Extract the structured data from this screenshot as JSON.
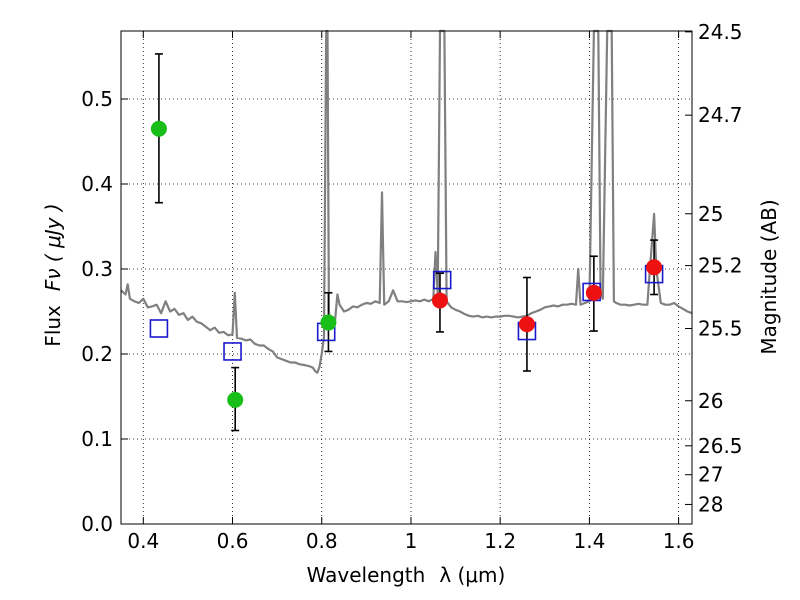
{
  "chart_data": {
    "type": "scatter",
    "xlabel": "Wavelength",
    "xlabel_symbol": "λ (μm)",
    "ylabel": "Flux",
    "ylabel_symbol": "Fν  ( μJy )",
    "y2label": "Magnitude (AB)",
    "xlim": [
      0.35,
      1.63
    ],
    "ylim": [
      0.0,
      0.58
    ],
    "grid": true,
    "x_ticks": [
      0.4,
      0.6,
      0.8,
      1.0,
      1.2,
      1.4,
      1.6
    ],
    "x_tick_labels": [
      "0.4",
      "0.6",
      "0.8",
      "1",
      "1.2",
      "1.4",
      "1.6"
    ],
    "y_ticks": [
      0.0,
      0.1,
      0.2,
      0.3,
      0.4,
      0.5
    ],
    "y_tick_labels": [
      "0.0",
      "0.1",
      "0.2",
      "0.3",
      "0.4",
      "0.5"
    ],
    "y2_ticks": [
      {
        "label": "24.5",
        "flux": 0.579
      },
      {
        "label": "24.7",
        "flux": 0.481
      },
      {
        "label": "25",
        "flux": 0.365
      },
      {
        "label": "25.2",
        "flux": 0.304
      },
      {
        "label": "25.5",
        "flux": 0.23
      },
      {
        "label": "26",
        "flux": 0.145
      },
      {
        "label": "26.5",
        "flux": 0.092
      },
      {
        "label": "27",
        "flux": 0.058
      },
      {
        "label": "28",
        "flux": 0.023
      }
    ],
    "colors": {
      "model": "#808080",
      "green": "#18bf18",
      "red": "#ee1111",
      "square": "#1a1acd",
      "errorbar": "#000000"
    },
    "series": [
      {
        "role": "model_spectrum",
        "points": [
          [
            0.35,
            0.275
          ],
          [
            0.36,
            0.27
          ],
          [
            0.365,
            0.282
          ],
          [
            0.37,
            0.265
          ],
          [
            0.38,
            0.262
          ],
          [
            0.39,
            0.26
          ],
          [
            0.4,
            0.265
          ],
          [
            0.41,
            0.255
          ],
          [
            0.42,
            0.256
          ],
          [
            0.43,
            0.258
          ],
          [
            0.44,
            0.248
          ],
          [
            0.45,
            0.262
          ],
          [
            0.46,
            0.25
          ],
          [
            0.47,
            0.253
          ],
          [
            0.48,
            0.246
          ],
          [
            0.49,
            0.248
          ],
          [
            0.5,
            0.24
          ],
          [
            0.51,
            0.244
          ],
          [
            0.52,
            0.238
          ],
          [
            0.53,
            0.236
          ],
          [
            0.54,
            0.232
          ],
          [
            0.55,
            0.228
          ],
          [
            0.56,
            0.231
          ],
          [
            0.57,
            0.225
          ],
          [
            0.58,
            0.226
          ],
          [
            0.59,
            0.222
          ],
          [
            0.6,
            0.223
          ],
          [
            0.605,
            0.272
          ],
          [
            0.61,
            0.219
          ],
          [
            0.62,
            0.218
          ],
          [
            0.63,
            0.216
          ],
          [
            0.64,
            0.217
          ],
          [
            0.65,
            0.212
          ],
          [
            0.66,
            0.21
          ],
          [
            0.67,
            0.21
          ],
          [
            0.68,
            0.206
          ],
          [
            0.69,
            0.203
          ],
          [
            0.7,
            0.196
          ],
          [
            0.71,
            0.194
          ],
          [
            0.72,
            0.192
          ],
          [
            0.73,
            0.19
          ],
          [
            0.74,
            0.19
          ],
          [
            0.75,
            0.188
          ],
          [
            0.76,
            0.187
          ],
          [
            0.77,
            0.186
          ],
          [
            0.78,
            0.184
          ],
          [
            0.785,
            0.18
          ],
          [
            0.79,
            0.178
          ],
          [
            0.795,
            0.185
          ],
          [
            0.8,
            0.2
          ],
          [
            0.805,
            0.22
          ],
          [
            0.81,
            0.58
          ],
          [
            0.813,
            0.58
          ],
          [
            0.816,
            0.25
          ],
          [
            0.82,
            0.235
          ],
          [
            0.83,
            0.24
          ],
          [
            0.835,
            0.27
          ],
          [
            0.84,
            0.258
          ],
          [
            0.85,
            0.25
          ],
          [
            0.86,
            0.252
          ],
          [
            0.87,
            0.256
          ],
          [
            0.88,
            0.255
          ],
          [
            0.89,
            0.258
          ],
          [
            0.9,
            0.26
          ],
          [
            0.91,
            0.259
          ],
          [
            0.92,
            0.262
          ],
          [
            0.93,
            0.26
          ],
          [
            0.935,
            0.39
          ],
          [
            0.94,
            0.258
          ],
          [
            0.95,
            0.262
          ],
          [
            0.96,
            0.275
          ],
          [
            0.97,
            0.262
          ],
          [
            0.98,
            0.262
          ],
          [
            0.99,
            0.261
          ],
          [
            1.0,
            0.262
          ],
          [
            1.01,
            0.263
          ],
          [
            1.02,
            0.262
          ],
          [
            1.03,
            0.264
          ],
          [
            1.04,
            0.262
          ],
          [
            1.05,
            0.265
          ],
          [
            1.055,
            0.32
          ],
          [
            1.06,
            0.27
          ],
          [
            1.065,
            0.58
          ],
          [
            1.075,
            0.58
          ],
          [
            1.08,
            0.262
          ],
          [
            1.09,
            0.255
          ],
          [
            1.1,
            0.252
          ],
          [
            1.11,
            0.25
          ],
          [
            1.12,
            0.247
          ],
          [
            1.13,
            0.245
          ],
          [
            1.14,
            0.244
          ],
          [
            1.15,
            0.245
          ],
          [
            1.16,
            0.243
          ],
          [
            1.17,
            0.244
          ],
          [
            1.18,
            0.243
          ],
          [
            1.19,
            0.244
          ],
          [
            1.2,
            0.244
          ],
          [
            1.21,
            0.245
          ],
          [
            1.22,
            0.245
          ],
          [
            1.23,
            0.244
          ],
          [
            1.24,
            0.243
          ],
          [
            1.25,
            0.244
          ],
          [
            1.26,
            0.245
          ],
          [
            1.27,
            0.248
          ],
          [
            1.28,
            0.25
          ],
          [
            1.29,
            0.252
          ],
          [
            1.3,
            0.255
          ],
          [
            1.31,
            0.256
          ],
          [
            1.32,
            0.257
          ],
          [
            1.33,
            0.256
          ],
          [
            1.34,
            0.258
          ],
          [
            1.35,
            0.258
          ],
          [
            1.36,
            0.259
          ],
          [
            1.37,
            0.258
          ],
          [
            1.375,
            0.3
          ],
          [
            1.38,
            0.258
          ],
          [
            1.39,
            0.26
          ],
          [
            1.4,
            0.262
          ],
          [
            1.41,
            0.58
          ],
          [
            1.42,
            0.58
          ],
          [
            1.425,
            0.27
          ],
          [
            1.43,
            0.265
          ],
          [
            1.44,
            0.58
          ],
          [
            1.45,
            0.58
          ],
          [
            1.455,
            0.262
          ],
          [
            1.46,
            0.26
          ],
          [
            1.47,
            0.258
          ],
          [
            1.48,
            0.258
          ],
          [
            1.49,
            0.257
          ],
          [
            1.5,
            0.258
          ],
          [
            1.51,
            0.259
          ],
          [
            1.52,
            0.258
          ],
          [
            1.53,
            0.258
          ],
          [
            1.535,
            0.295
          ],
          [
            1.54,
            0.33
          ],
          [
            1.545,
            0.365
          ],
          [
            1.55,
            0.3
          ],
          [
            1.56,
            0.26
          ],
          [
            1.57,
            0.258
          ],
          [
            1.58,
            0.258
          ],
          [
            1.59,
            0.26
          ],
          [
            1.6,
            0.256
          ],
          [
            1.61,
            0.253
          ],
          [
            1.62,
            0.25
          ],
          [
            1.63,
            0.248
          ]
        ]
      },
      {
        "role": "model_photometry_squares",
        "points": [
          [
            0.435,
            0.23
          ],
          [
            0.6,
            0.203
          ],
          [
            0.81,
            0.226
          ],
          [
            1.07,
            0.287
          ],
          [
            1.26,
            0.227
          ],
          [
            1.405,
            0.273
          ],
          [
            1.545,
            0.294
          ]
        ]
      },
      {
        "role": "observed_green",
        "points": [
          {
            "x": 0.435,
            "y": 0.465,
            "err_low": 0.378,
            "err_high": 0.553
          },
          {
            "x": 0.606,
            "y": 0.146,
            "err_low": 0.11,
            "err_high": 0.184
          },
          {
            "x": 0.815,
            "y": 0.237,
            "err_low": 0.203,
            "err_high": 0.272
          }
        ]
      },
      {
        "role": "observed_red",
        "points": [
          {
            "x": 1.065,
            "y": 0.263,
            "err_low": 0.226,
            "err_high": 0.295
          },
          {
            "x": 1.26,
            "y": 0.235,
            "err_low": 0.18,
            "err_high": 0.29
          },
          {
            "x": 1.41,
            "y": 0.272,
            "err_low": 0.227,
            "err_high": 0.315
          },
          {
            "x": 1.545,
            "y": 0.302,
            "err_low": 0.27,
            "err_high": 0.334
          }
        ]
      }
    ]
  }
}
